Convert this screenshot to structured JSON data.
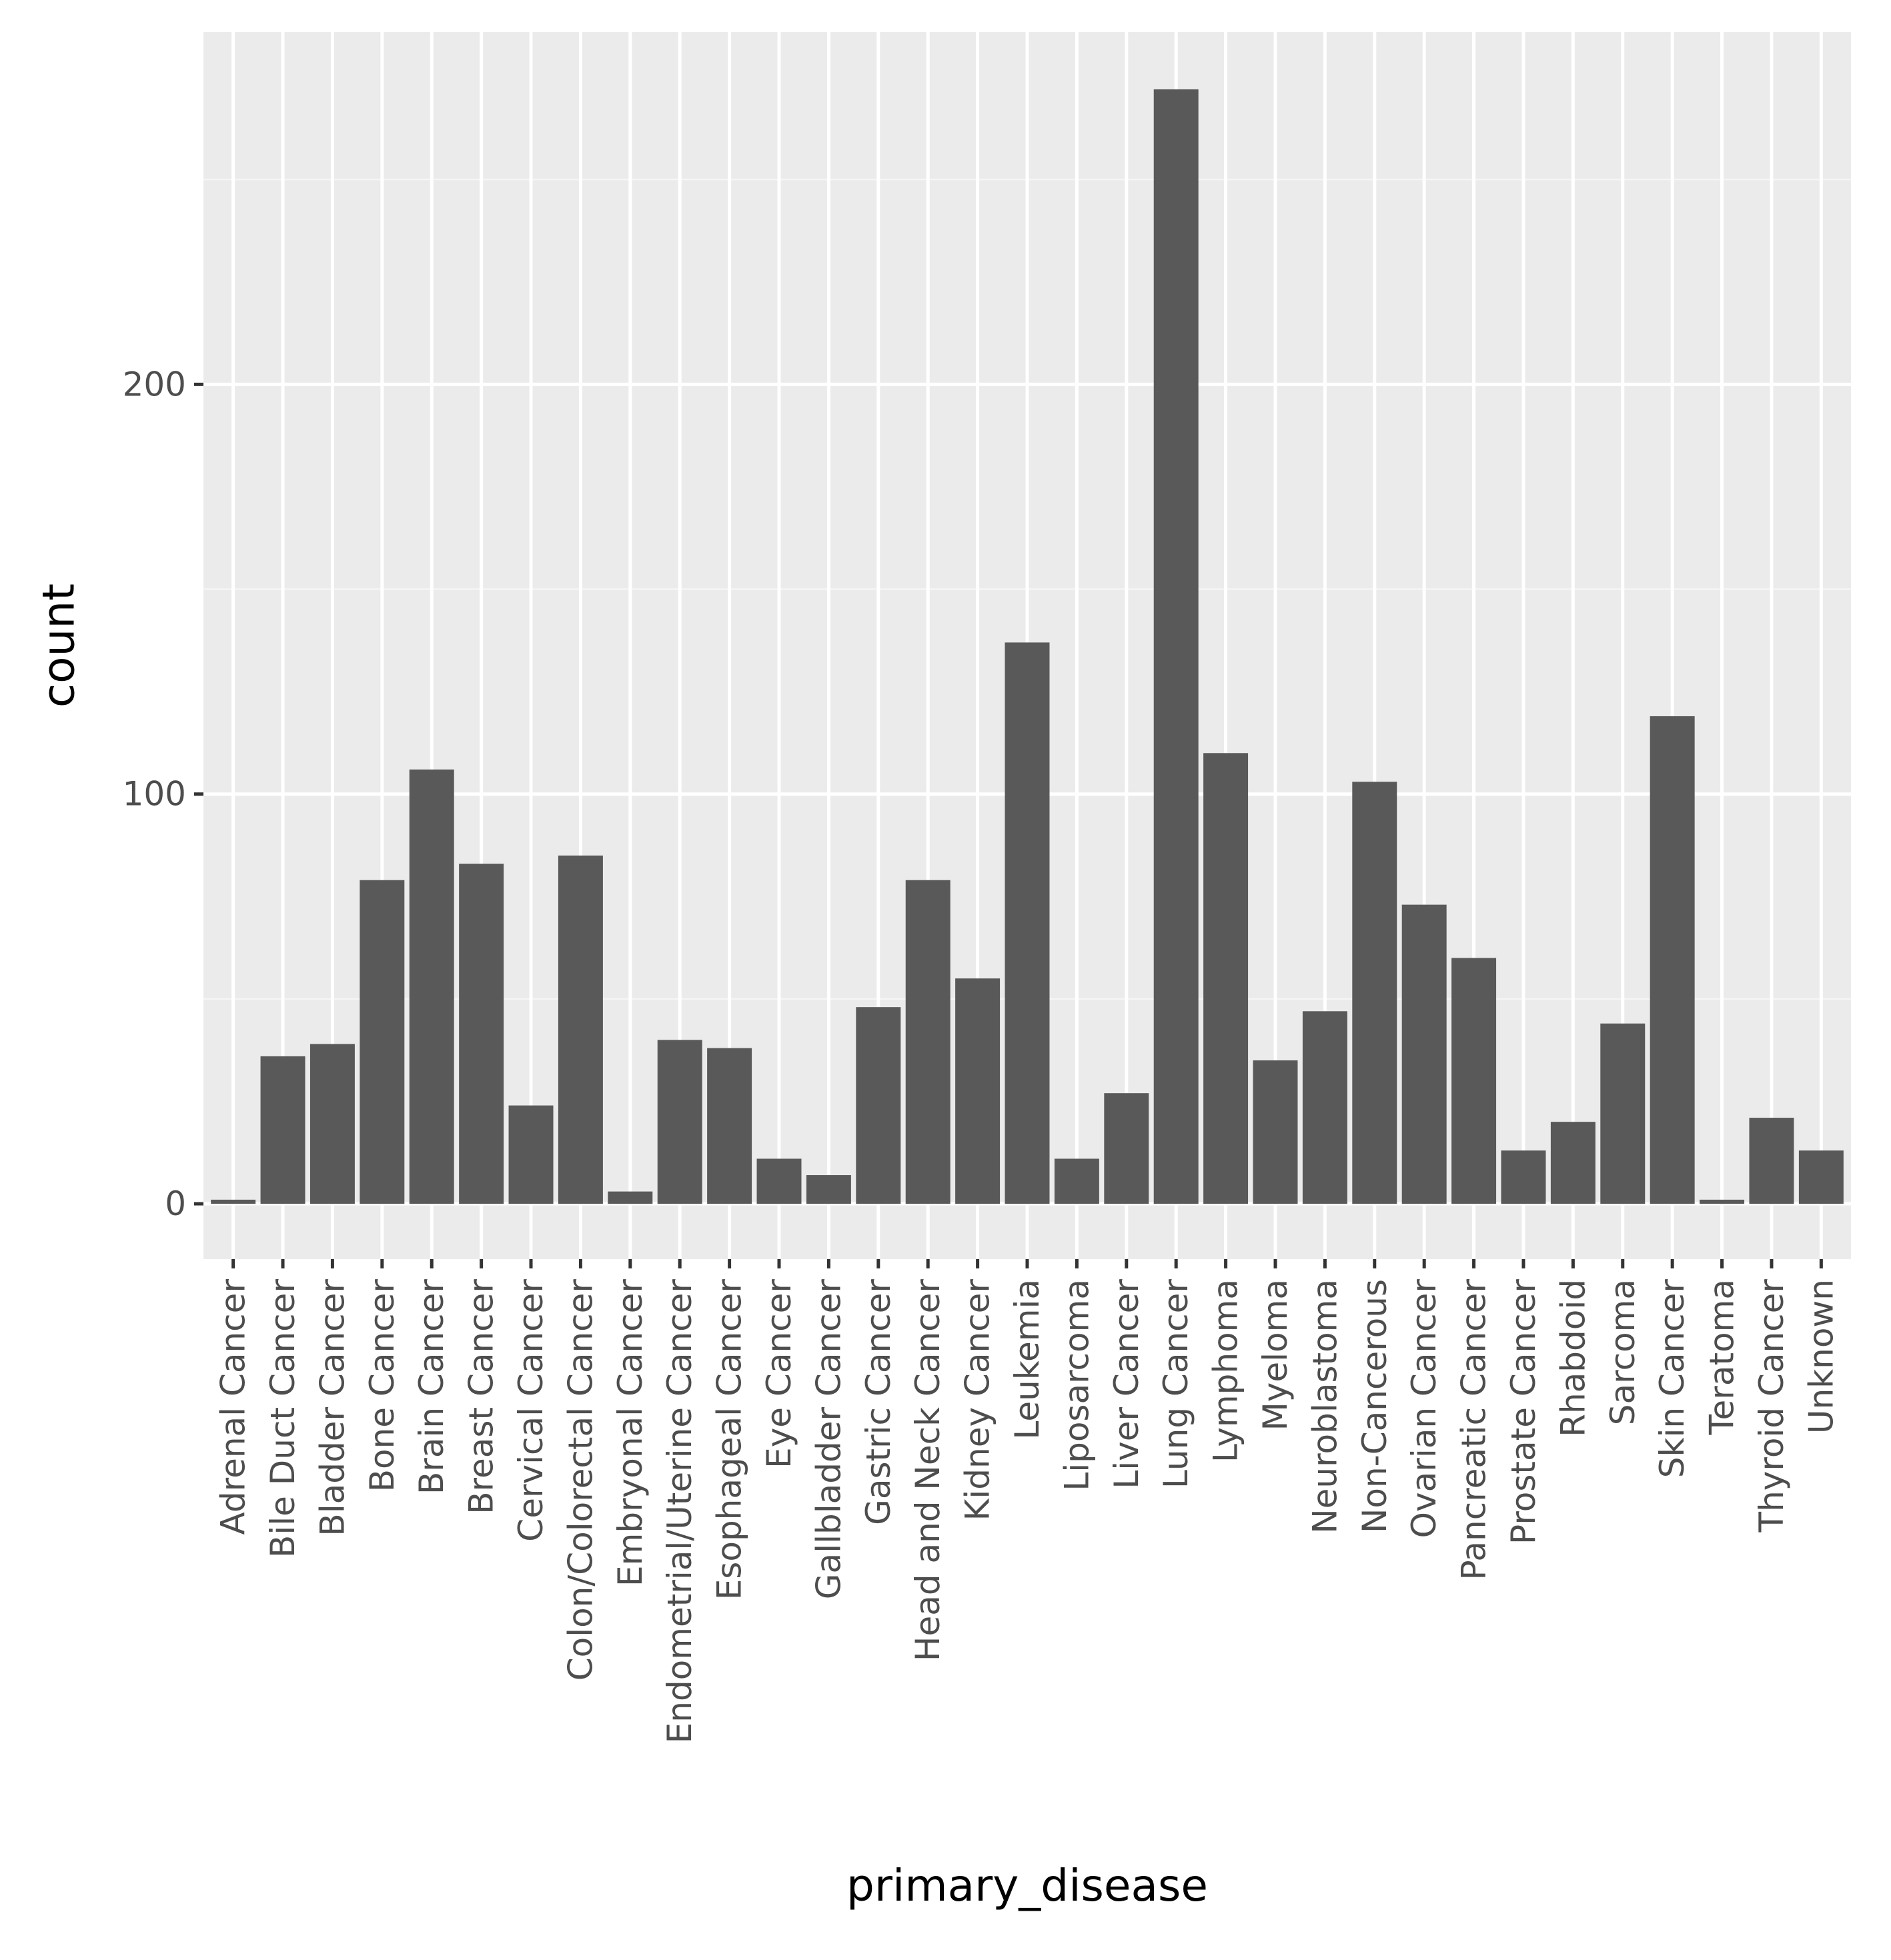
{
  "chart_data": {
    "type": "bar",
    "title": "",
    "xlabel": "primary_disease",
    "ylabel": "count",
    "ylim": [
      -13.5,
      286
    ],
    "y_ticks": [
      0,
      100,
      200
    ],
    "y_tick_labels": [
      "0",
      "100",
      "200"
    ],
    "grid": true,
    "categories": [
      "Adrenal Cancer",
      "Bile Duct Cancer",
      "Bladder Cancer",
      "Bone Cancer",
      "Brain Cancer",
      "Breast Cancer",
      "Cervical Cancer",
      "Colon/Colorectal Cancer",
      "Embryonal Cancer",
      "Endometrial/Uterine Cancer",
      "Esophageal Cancer",
      "Eye Cancer",
      "Gallbladder Cancer",
      "Gastric Cancer",
      "Head and Neck Cancer",
      "Kidney Cancer",
      "Leukemia",
      "Liposarcoma",
      "Liver Cancer",
      "Lung Cancer",
      "Lymphoma",
      "Myeloma",
      "Neuroblastoma",
      "Non-Cancerous",
      "Ovarian Cancer",
      "Pancreatic Cancer",
      "Prostate Cancer",
      "Rhabdoid",
      "Sarcoma",
      "Skin Cancer",
      "Teratoma",
      "Thyroid Cancer",
      "Unknown"
    ],
    "values": [
      1,
      36,
      39,
      79,
      106,
      83,
      24,
      85,
      3,
      40,
      38,
      11,
      7,
      48,
      79,
      55,
      137,
      11,
      27,
      272,
      110,
      35,
      47,
      103,
      73,
      60,
      13,
      20,
      44,
      119,
      1,
      21,
      13
    ],
    "colors": {
      "bar": "#595959",
      "panel_background": "#ebebeb",
      "grid_major": "#ffffff",
      "grid_minor": "#f5f5f5",
      "tick_mark": "#333333",
      "tick_label": "#4d4d4d",
      "axis_title": "#000000"
    }
  }
}
